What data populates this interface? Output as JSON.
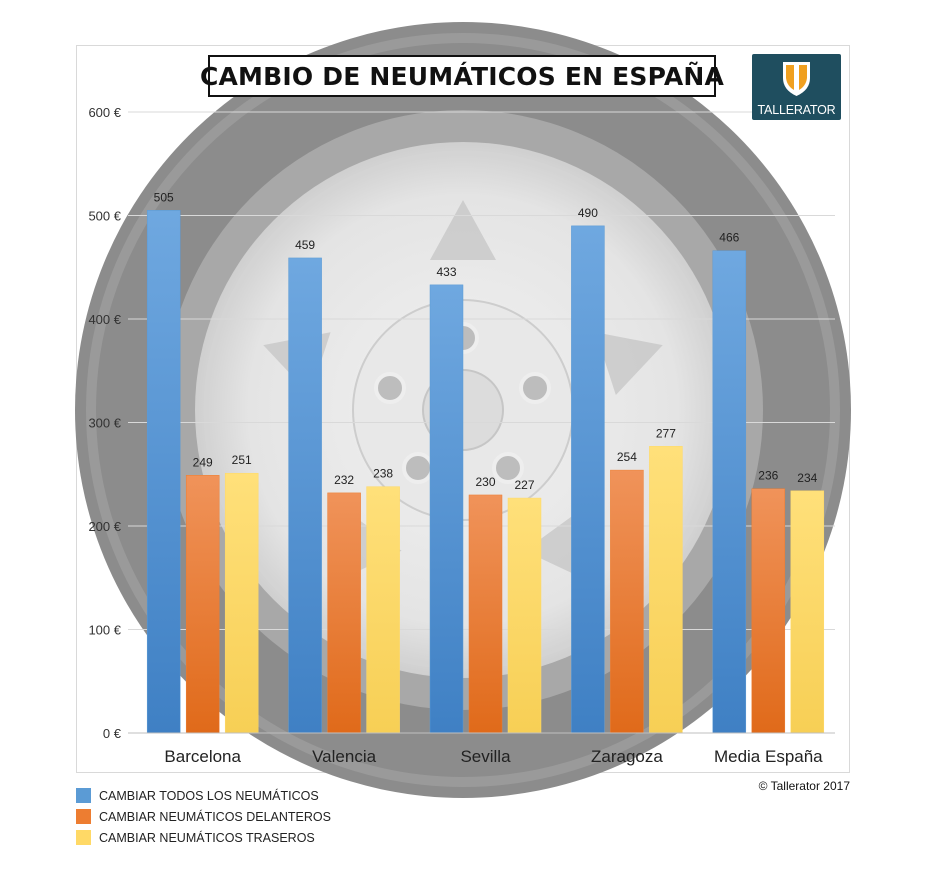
{
  "title": "CAMBIO DE NEUMÁTICOS EN ESPAÑA",
  "logo": {
    "text": "TALLERATOR",
    "background": "#1f4e5f",
    "accent": "#f0a020"
  },
  "copyright": "© Tallerator 2017",
  "colors": {
    "series_1": "#5b9bd5",
    "series_2": "#ed7d31",
    "series_3": "#ffd966",
    "background_tire": "#8f8f8f"
  },
  "chart_data": {
    "type": "bar",
    "categories": [
      "Barcelona",
      "Valencia",
      "Sevilla",
      "Zaragoza",
      "Media España"
    ],
    "series": [
      {
        "name": "CAMBIAR TODOS LOS NEUMÁTICOS",
        "values": [
          505,
          459,
          433,
          490,
          466
        ]
      },
      {
        "name": "CAMBIAR NEUMÁTICOS DELANTEROS",
        "values": [
          249,
          232,
          230,
          254,
          236
        ]
      },
      {
        "name": "CAMBIAR NEUMÁTICOS TRASEROS",
        "values": [
          251,
          238,
          227,
          277,
          234
        ]
      }
    ],
    "yticks": [
      "0 €",
      "100 €",
      "200 €",
      "300 €",
      "400 €",
      "500 €",
      "600 €"
    ],
    "ylim": [
      0,
      600
    ],
    "grid": true,
    "legend_position": "bottom-left"
  }
}
